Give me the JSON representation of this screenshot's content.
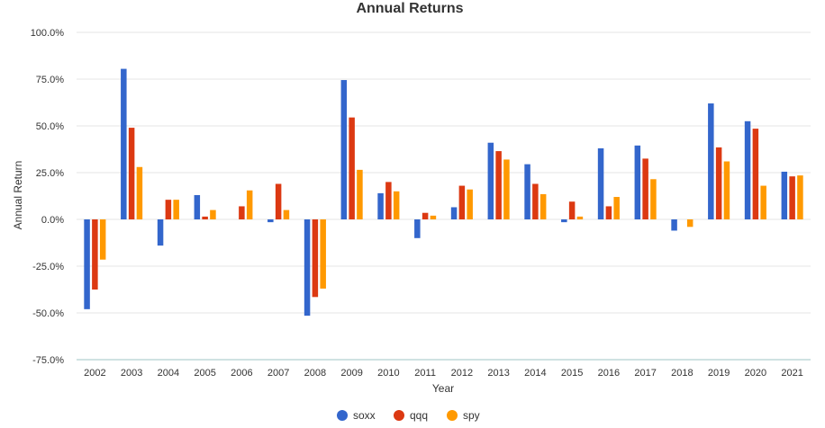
{
  "chart_data": {
    "type": "bar",
    "title": "Annual Returns",
    "xlabel": "Year",
    "ylabel": "Annual Return",
    "ylim": [
      -75,
      100
    ],
    "yticks": [
      100,
      75,
      50,
      25,
      0,
      -25,
      -50,
      -75
    ],
    "ytick_labels": [
      "100.0%",
      "75.0%",
      "50.0%",
      "25.0%",
      "0.0%",
      "-25.0%",
      "-50.0%",
      "-75.0%"
    ],
    "grid": true,
    "legend_position": "bottom",
    "categories": [
      "2002",
      "2003",
      "2004",
      "2005",
      "2006",
      "2007",
      "2008",
      "2009",
      "2010",
      "2011",
      "2012",
      "2013",
      "2014",
      "2015",
      "2016",
      "2017",
      "2018",
      "2019",
      "2020",
      "2021"
    ],
    "series": [
      {
        "name": "soxx",
        "color": "#3366cc",
        "values": [
          -48,
          80.5,
          -14,
          13,
          0,
          -1.5,
          -51.5,
          74.5,
          14,
          -10,
          6.5,
          41,
          29.5,
          -1.5,
          38,
          39.5,
          -6,
          62,
          52.5,
          25.5
        ]
      },
      {
        "name": "qqq",
        "color": "#dc3912",
        "values": [
          -37.5,
          49,
          10.5,
          1.5,
          7,
          19,
          -41.5,
          54.5,
          20,
          3.5,
          18,
          36.5,
          19,
          9.5,
          7,
          32.5,
          0,
          38.5,
          48.5,
          23
        ]
      },
      {
        "name": "spy",
        "color": "#ff9900",
        "values": [
          -21.5,
          28,
          10.5,
          5,
          15.5,
          5,
          -37,
          26.5,
          15,
          2,
          16,
          32,
          13.5,
          1.5,
          12,
          21.5,
          -4,
          31,
          18,
          23.5
        ]
      }
    ]
  }
}
